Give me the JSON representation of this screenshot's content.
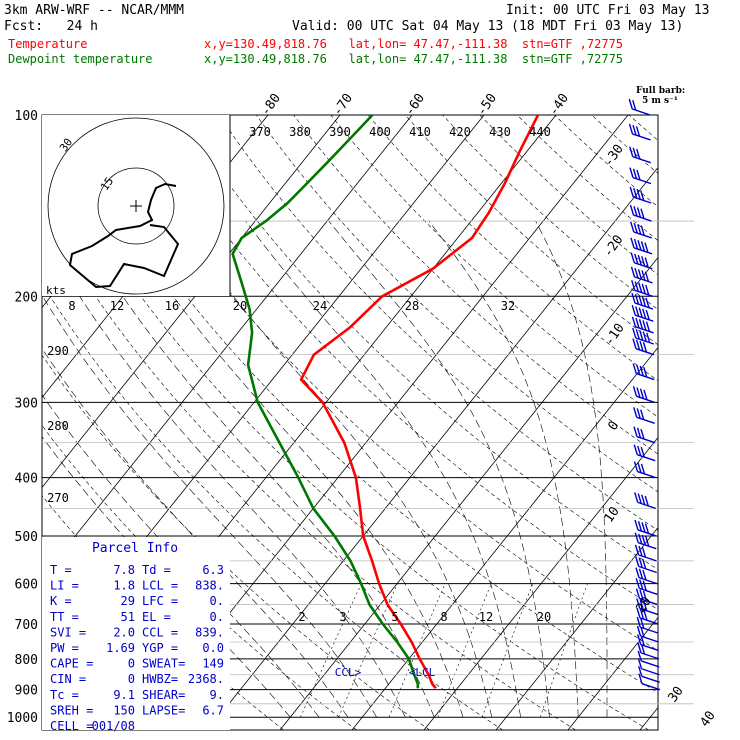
{
  "header": {
    "model": "3km ARW-WRF -- NCAR/MMM",
    "init": "Init: 00 UTC Fri 03 May 13",
    "fcst": "Fcst:   24 h",
    "valid": "Valid: 00 UTC Sat 04 May 13 (18 MDT Fri 03 May 13)",
    "temp_label": "Temperature",
    "temp_loc": "x,y=130.49,818.76   lat,lon= 47.47,-111.38  stn=GTF ,72775",
    "dew_label": "Dewpoint temperature",
    "dew_loc": "x,y=130.49,818.76   lat,lon= 47.47,-111.38  stn=GTF ,72775"
  },
  "colors": {
    "temperature": "#ff0000",
    "dewpoint": "#007700",
    "barbs": "#0000cc",
    "panel": "#0000cc",
    "title": "#000000"
  },
  "barb_legend": {
    "line1": "Full barb:",
    "line2": "5 m s⁻¹"
  },
  "parcel_info": {
    "title": "Parcel Info",
    "rows": [
      [
        "T  =",
        "7.8",
        "Td =",
        "6.3"
      ],
      [
        "LI =",
        "1.8",
        "LCL =",
        "838."
      ],
      [
        "K  =",
        "29",
        "LFC =",
        "0."
      ],
      [
        "TT =",
        "51",
        "EL  =",
        "0."
      ],
      [
        "SVI =",
        "2.0",
        "CCL =",
        "839."
      ],
      [
        "PW =",
        "1.69",
        "YGP =",
        "0.0"
      ],
      [
        "CAPE =",
        "0",
        "SWEAT=",
        "149"
      ],
      [
        "CIN  =",
        "0",
        "HWBZ=",
        "2368."
      ],
      [
        "Tc =",
        "9.1",
        "SHEAR=",
        "9."
      ],
      [
        "SREH =",
        "150",
        "LAPSE=",
        "6.7"
      ],
      [
        "CELL =",
        "001/08",
        "",
        ""
      ]
    ]
  },
  "hodograph": {
    "units_label": "kts",
    "ring_labels": [
      "15",
      "30"
    ],
    "speed_labels": [
      "8",
      "12",
      "16",
      "20",
      "24",
      "28",
      "32"
    ]
  },
  "chart_data": {
    "type": "line",
    "title": "",
    "ylabel": "",
    "xlabel": "",
    "pressure_levels": [
      100,
      200,
      300,
      400,
      500,
      600,
      700,
      800,
      900,
      1000
    ],
    "isotherm_labels": [
      "-80",
      "-70",
      "-60",
      "-50",
      "-40",
      "-30",
      "-20",
      "-10",
      "0",
      "10",
      "20",
      "30",
      "40"
    ],
    "theta_labels": [
      "370",
      "380",
      "390",
      "400",
      "410",
      "420",
      "430",
      "440"
    ],
    "dry_adiabat_labels": [
      "290",
      "280",
      "270"
    ],
    "mixing_ratio_labels": [
      "2",
      "3",
      "5",
      "8",
      "12",
      "20"
    ],
    "ccl_label": "CCL>",
    "lcl_label": "<LCL",
    "series": [
      {
        "name": "Temperature",
        "p": [
          895,
          880,
          850,
          800,
          750,
          700,
          650,
          600,
          550,
          500,
          450,
          400,
          350,
          300,
          275,
          250,
          225,
          200,
          180,
          160,
          145,
          130,
          115,
          100
        ],
        "t": [
          7.0,
          6.0,
          4.5,
          1.5,
          -1.5,
          -5.0,
          -9.0,
          -12.5,
          -16.0,
          -20.0,
          -23.5,
          -27.5,
          -33.0,
          -40.5,
          -46.0,
          -47.0,
          -45.0,
          -44.0,
          -40.0,
          -38.0,
          -38.5,
          -39.5,
          -41.0,
          -42.5
        ]
      },
      {
        "name": "Dewpoint temperature",
        "p": [
          895,
          880,
          850,
          800,
          750,
          700,
          650,
          600,
          550,
          500,
          450,
          400,
          350,
          300,
          260,
          230,
          210,
          190,
          170,
          160,
          150,
          140,
          130,
          120,
          110,
          100
        ],
        "t": [
          4.5,
          4.0,
          2.5,
          0.0,
          -3.5,
          -7.5,
          -11.5,
          -15.0,
          -19.0,
          -24.0,
          -30.0,
          -35.5,
          -42.0,
          -49.5,
          -55.0,
          -58.0,
          -61.0,
          -65.0,
          -69.5,
          -70.0,
          -68.5,
          -67.5,
          -67.0,
          -66.5,
          -66.0,
          -65.5
        ]
      }
    ],
    "wind": {
      "p": [
        900,
        875,
        850,
        825,
        800,
        775,
        750,
        725,
        700,
        675,
        650,
        625,
        600,
        575,
        550,
        525,
        500,
        450,
        400,
        375,
        350,
        325,
        300,
        275,
        250,
        240,
        230,
        220,
        210,
        200,
        190,
        180,
        170,
        160,
        150,
        140,
        130,
        120,
        110,
        100
      ],
      "speed_ms": [
        3,
        5,
        6,
        7,
        8,
        9,
        11,
        12,
        13,
        14,
        15,
        15,
        15,
        16,
        17,
        18,
        20,
        18,
        17,
        16,
        16,
        16,
        18,
        20,
        22,
        23,
        23,
        24,
        25,
        25,
        24,
        24,
        23,
        22,
        20,
        18,
        17,
        16,
        14,
        12
      ]
    }
  }
}
